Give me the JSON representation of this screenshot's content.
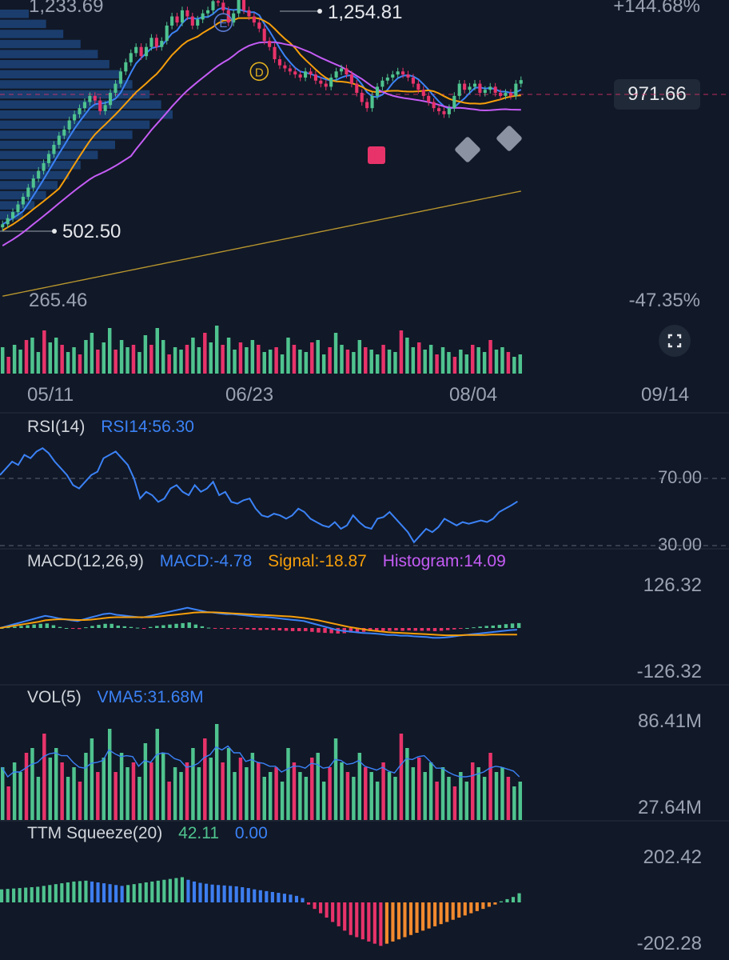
{
  "header": {
    "top_price": "1,233.69",
    "high_label": "1,254.81",
    "low_label": "502.50",
    "bottom_price": "265.46",
    "pct_top": "+144.68%",
    "pct_bottom": "-47.35%",
    "current_price": "971.66",
    "expand_icon": "expand-icon"
  },
  "markers": [
    {
      "letter": "E",
      "x_index": 43,
      "value": 1160
    },
    {
      "letter": "D",
      "x_index": 50,
      "value": 1000
    }
  ],
  "time_axis": [
    "05/11",
    "06/23",
    "08/04",
    "09/14"
  ],
  "rsi": {
    "title": "RSI(14)",
    "value_label": "RSI14:56.30",
    "levels": [
      "70.00",
      "30.00"
    ]
  },
  "macd": {
    "title": "MACD(12,26,9)",
    "macd_label": "MACD:-4.78",
    "signal_label": "Signal:-18.87",
    "hist_label": "Histogram:14.09",
    "top": "126.32",
    "bottom": "-126.32"
  },
  "vol": {
    "title": "VOL(5)",
    "vma_label": "VMA5:31.68M",
    "top": "86.41M",
    "bottom": "27.64M"
  },
  "ttm": {
    "title": "TTM Squeeze(20)",
    "value1": "42.11",
    "value2": "0.00",
    "top": "202.42",
    "bottom": "-202.28"
  },
  "colors": {
    "bg": "#111827",
    "up": "#4fc38f",
    "down": "#e8336a",
    "ma_short": "#3b82f6",
    "ma_mid": "#f59e0b",
    "ma_long": "#c45cf5",
    "ma_200": "#b8962e",
    "ttm_blue": "#3d7ef0",
    "ttm_orange": "#f28a2e"
  },
  "chart_data": [
    {
      "type": "candlestick",
      "title": "",
      "x_ticks": [
        "05/11",
        "06/23",
        "08/04",
        "09/14"
      ],
      "ylim": [
        265.46,
        1233.69
      ],
      "percent_range": [
        "+144.68%",
        "-47.35%"
      ],
      "annotations": {
        "high": 1254.81,
        "low": 502.5,
        "last": 971.66
      },
      "close": [
        500,
        520,
        540,
        565,
        590,
        620,
        650,
        675,
        700,
        730,
        760,
        790,
        810,
        840,
        860,
        880,
        900,
        920,
        905,
        870,
        890,
        930,
        960,
        1000,
        1030,
        1060,
        1080,
        1050,
        1080,
        1110,
        1080,
        1100,
        1150,
        1180,
        1160,
        1200,
        1180,
        1150,
        1170,
        1190,
        1200,
        1230,
        1225,
        1200,
        1160,
        1190,
        1240,
        1200,
        1180,
        1160,
        1140,
        1100,
        1080,
        1040,
        1020,
        1010,
        1000,
        990,
        980,
        1000,
        990,
        970,
        960,
        950,
        980,
        1000,
        1010,
        990,
        960,
        930,
        900,
        880,
        920,
        950,
        970,
        980,
        990,
        1000,
        990,
        980,
        960,
        940,
        920,
        900,
        880,
        870,
        860,
        880,
        920,
        960,
        940,
        950,
        960,
        930,
        940,
        950,
        930,
        920,
        930,
        920,
        960,
        971.66
      ],
      "volume_rel": [
        0.55,
        0.35,
        0.6,
        0.5,
        0.7,
        0.75,
        0.45,
        0.9,
        0.65,
        0.75,
        0.6,
        0.45,
        0.55,
        0.4,
        0.7,
        0.85,
        0.5,
        0.65,
        0.95,
        0.5,
        0.7,
        0.55,
        0.6,
        0.45,
        0.8,
        0.6,
        0.95,
        0.7,
        0.4,
        0.55,
        0.5,
        0.6,
        0.75,
        0.55,
        0.85,
        0.65,
        1.0,
        0.6,
        0.75,
        0.5,
        0.65,
        0.55,
        0.7,
        0.6,
        0.45,
        0.5,
        0.55,
        0.4,
        0.75,
        0.6,
        0.5,
        0.45,
        0.65,
        0.7,
        0.4,
        0.55,
        0.85,
        0.6,
        0.5,
        0.45,
        0.7,
        0.55,
        0.5,
        0.4,
        0.6,
        0.5,
        0.45,
        0.9,
        0.75,
        0.55,
        0.65,
        0.5,
        0.6,
        0.4,
        0.55,
        0.45,
        0.35,
        0.5,
        0.4,
        0.6,
        0.55,
        0.45,
        0.7,
        0.5,
        0.55,
        0.45,
        0.35,
        0.4
      ]
    },
    {
      "type": "line",
      "name": "RSI14",
      "levels": [
        70,
        30
      ],
      "values": [
        72,
        76,
        80,
        78,
        84,
        82,
        86,
        88,
        85,
        80,
        76,
        72,
        66,
        64,
        68,
        72,
        74,
        82,
        84,
        86,
        82,
        78,
        70,
        58,
        62,
        60,
        56,
        58,
        64,
        66,
        62,
        60,
        66,
        62,
        64,
        68,
        60,
        62,
        56,
        55,
        57,
        58,
        52,
        48,
        47,
        49,
        48,
        46,
        48,
        52,
        50,
        46,
        44,
        42,
        41,
        44,
        40,
        42,
        48,
        44,
        41,
        40,
        46,
        47,
        50,
        46,
        42,
        38,
        32,
        36,
        40,
        38,
        41,
        46,
        44,
        42,
        44,
        43,
        44,
        45,
        44,
        46,
        50,
        52,
        54,
        56.3
      ]
    },
    {
      "type": "line",
      "name": "MACD",
      "ylim": [
        -126.32,
        126.32
      ],
      "macd": [
        0,
        5,
        10,
        15,
        20,
        25,
        30,
        35,
        32,
        28,
        25,
        22,
        20,
        25,
        30,
        35,
        40,
        42,
        38,
        36,
        34,
        32,
        30,
        34,
        38,
        42,
        46,
        50,
        54,
        58,
        54,
        50,
        46,
        44,
        42,
        40,
        40,
        38,
        36,
        34,
        32,
        32,
        30,
        28,
        26,
        24,
        22,
        20,
        15,
        10,
        5,
        0,
        -5,
        -8,
        -10,
        -12,
        -14,
        -15,
        -16,
        -18,
        -20,
        -20,
        -22,
        -22,
        -24,
        -25,
        -26,
        -28,
        -28,
        -27,
        -25,
        -22,
        -20,
        -18,
        -16,
        -14,
        -12,
        -10,
        -8,
        -6,
        -4.78
      ],
      "signal": [
        0,
        3,
        6,
        9,
        12,
        15,
        18,
        22,
        24,
        25,
        25,
        24,
        23,
        23,
        24,
        26,
        28,
        30,
        31,
        31,
        31,
        31,
        31,
        31,
        32,
        34,
        36,
        38,
        40,
        42,
        44,
        45,
        45,
        45,
        44,
        43,
        42,
        41,
        40,
        39,
        38,
        37,
        36,
        35,
        34,
        33,
        31,
        29,
        26,
        23,
        19,
        15,
        11,
        7,
        3,
        0,
        -3,
        -6,
        -8,
        -10,
        -12,
        -13,
        -14,
        -15,
        -16,
        -17,
        -18,
        -19,
        -20,
        -21,
        -21,
        -21,
        -20,
        -20,
        -20,
        -20,
        -19,
        -19,
        -19,
        -19,
        -18.87
      ],
      "histogram": [
        0,
        2,
        4,
        6,
        8,
        10,
        12,
        13,
        8,
        3,
        0,
        -2,
        -3,
        2,
        6,
        9,
        12,
        12,
        7,
        5,
        3,
        1,
        -1,
        3,
        6,
        8,
        10,
        12,
        14,
        16,
        10,
        5,
        1,
        -1,
        -2,
        -3,
        -2,
        -3,
        -4,
        -5,
        -6,
        -5,
        -6,
        -7,
        -8,
        -9,
        -9,
        -9,
        -11,
        -13,
        -14,
        -15,
        -16,
        -15,
        -13,
        -12,
        -11,
        -9,
        -8,
        -8,
        -8,
        -7,
        -8,
        -7,
        -8,
        -8,
        -8,
        -9,
        -8,
        -6,
        -4,
        -1,
        0,
        2,
        4,
        6,
        7,
        9,
        11,
        13,
        14.09
      ]
    },
    {
      "type": "bar",
      "name": "VOL(5)",
      "ylim": [
        27.64,
        86.41
      ],
      "vma5": 31.68
    },
    {
      "type": "bar",
      "name": "TTM Squeeze(20)",
      "ylim": [
        -202.28,
        202.42
      ],
      "values": [
        60,
        62,
        64,
        66,
        68,
        70,
        72,
        76,
        80,
        84,
        88,
        92,
        96,
        98,
        100,
        96,
        92,
        88,
        84,
        80,
        76,
        80,
        84,
        88,
        92,
        96,
        100,
        104,
        108,
        112,
        116,
        104,
        96,
        90,
        86,
        82,
        80,
        78,
        76,
        74,
        70,
        66,
        60,
        56,
        52,
        48,
        44,
        40,
        36,
        30,
        20,
        -10,
        -30,
        -50,
        -70,
        -90,
        -110,
        -130,
        -150,
        -160,
        -170,
        -180,
        -190,
        -200,
        -190,
        -180,
        -170,
        -160,
        -150,
        -140,
        -130,
        -120,
        -110,
        -100,
        -90,
        -80,
        -70,
        -60,
        -50,
        -40,
        -30,
        -20,
        -10,
        5,
        15,
        25,
        42.11
      ]
    }
  ]
}
